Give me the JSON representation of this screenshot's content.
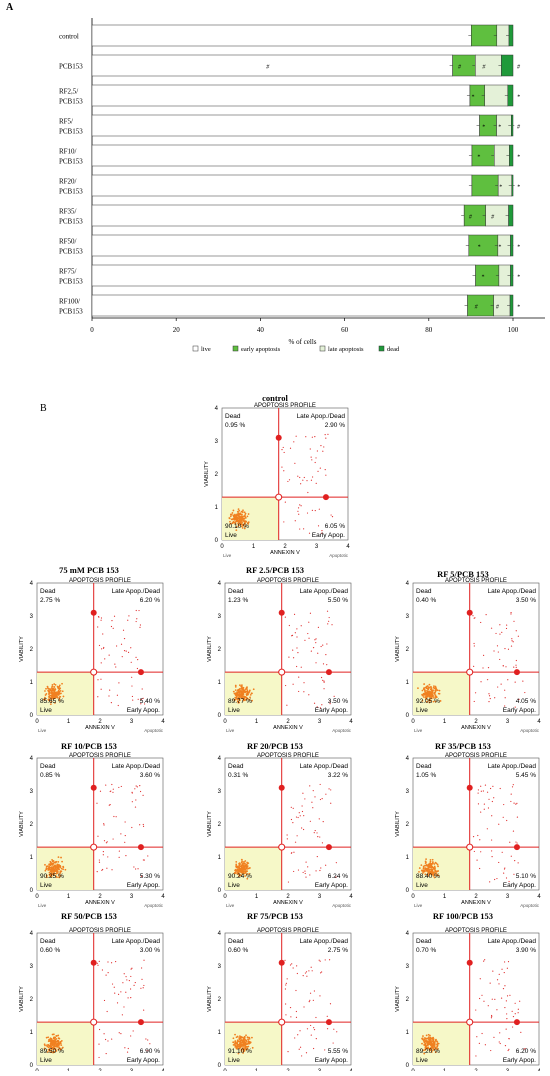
{
  "panel_a": {
    "label": "A",
    "chart_data": {
      "type": "bar",
      "orientation": "horizontal",
      "stacked": true,
      "xlabel": "% of cells",
      "xlim": [
        0,
        100
      ],
      "xticks": [
        0,
        20,
        40,
        60,
        80,
        100
      ],
      "categories": [
        "control",
        "PCB153",
        "RF2,5/\nPCB153",
        "RF5/\nPCB153",
        "RF10/\nPCB153",
        "RF20/\nPCB153",
        "RF35/\nPCB153",
        "RF50/\nPCB153",
        "RF75/\nPCB153",
        "RF100/\nPCB153"
      ],
      "series": [
        {
          "name": "live",
          "color": "#ffffff",
          "values": [
            90.1,
            85.65,
            89.77,
            92.05,
            90.25,
            90.24,
            88.4,
            89.5,
            91.1,
            89.2
          ]
        },
        {
          "name": "early apoptosis",
          "color": "#5fbf3f",
          "values": [
            6.05,
            5.4,
            3.5,
            4.05,
            5.3,
            6.24,
            5.1,
            6.9,
            5.55,
            6.2
          ]
        },
        {
          "name": "late apoptosis",
          "color": "#e4f1d8",
          "values": [
            2.9,
            6.2,
            5.5,
            3.5,
            3.6,
            3.22,
            5.45,
            3.0,
            2.75,
            3.9
          ]
        },
        {
          "name": "dead",
          "color": "#1f9a3a",
          "values": [
            0.95,
            2.75,
            1.23,
            0.4,
            0.85,
            0.31,
            1.05,
            0.6,
            0.6,
            0.7
          ]
        }
      ],
      "annotations": [
        [
          "",
          "",
          "",
          ""
        ],
        [
          "#",
          "#",
          "#",
          "#"
        ],
        [
          "",
          "*",
          "",
          "*"
        ],
        [
          "",
          "*",
          "*",
          "#"
        ],
        [
          "",
          "*",
          "",
          "*"
        ],
        [
          "",
          "",
          "*",
          "*"
        ],
        [
          "",
          "#",
          "#",
          ""
        ],
        [
          "",
          "*",
          "*",
          "*"
        ],
        [
          "",
          "*",
          "",
          "*"
        ],
        [
          "",
          "#",
          "#",
          "*"
        ]
      ],
      "legend": [
        "live",
        "early apoptosis",
        "late apoptosis",
        "dead"
      ],
      "legend_position": "bottom"
    }
  },
  "panel_b": {
    "label": "B",
    "plot_text": {
      "subtitle": "APOPTOSIS PROFILE",
      "ylabel": "VIABILITY",
      "xlabel": "ANNEXIN V",
      "x_left_label": "Live",
      "x_right_label": "Apoptotic",
      "q_dead": "Dead",
      "q_late": "Late Apop./Dead",
      "q_live": "Live",
      "q_early": "Early Apop.",
      "ticks": [
        "0",
        "1",
        "2",
        "3",
        "4"
      ]
    },
    "chart_data": [
      {
        "type": "scatter",
        "title": "control",
        "dead": "0.95 %",
        "late": "2.90 %",
        "live": "90.10 %",
        "early": "6.05 %",
        "xlim": [
          0,
          4
        ],
        "ylim": [
          0,
          4
        ]
      },
      {
        "type": "scatter",
        "title": "75 mM PCB 153",
        "dead": "2.75 %",
        "late": "6.20 %",
        "live": "85.65 %",
        "early": "5.40 %",
        "xlim": [
          0,
          4
        ],
        "ylim": [
          0,
          4
        ]
      },
      {
        "type": "scatter",
        "title": "RF 2.5/PCB 153",
        "dead": "1.23 %",
        "late": "5.50 %",
        "live": "89.77 %",
        "early": "3.50 %",
        "xlim": [
          0,
          4
        ],
        "ylim": [
          0,
          4
        ]
      },
      {
        "type": "scatter",
        "title": "RF 5/PCB 153",
        "dead": "0.40 %",
        "late": "3.50 %",
        "live": "92.05 %",
        "early": "4.05 %",
        "xlim": [
          0,
          4
        ],
        "ylim": [
          0,
          4
        ]
      },
      {
        "type": "scatter",
        "title": "RF 10/PCB 153",
        "dead": "0.85 %",
        "late": "3.60 %",
        "live": "90.25 %",
        "early": "5.30 %",
        "xlim": [
          0,
          4
        ],
        "ylim": [
          0,
          4
        ]
      },
      {
        "type": "scatter",
        "title": "RF 20/PCB 153",
        "dead": "0.31 %",
        "late": "3.22 %",
        "live": "90.24 %",
        "early": "6.24 %",
        "xlim": [
          0,
          4
        ],
        "ylim": [
          0,
          4
        ]
      },
      {
        "type": "scatter",
        "title": "RF 35/PCB 153",
        "dead": "1.05 %",
        "late": "5.45 %",
        "live": "88.40 %",
        "early": "5.10 %",
        "xlim": [
          0,
          4
        ],
        "ylim": [
          0,
          4
        ]
      },
      {
        "type": "scatter",
        "title": "RF 50/PCB 153",
        "dead": "0.60 %",
        "late": "3.00 %",
        "live": "89.50 %",
        "early": "6.90 %",
        "xlim": [
          0,
          4
        ],
        "ylim": [
          0,
          4
        ]
      },
      {
        "type": "scatter",
        "title": "RF 75/PCB 153",
        "dead": "0.60 %",
        "late": "2.75 %",
        "live": "91.10 %",
        "early": "5.55 %",
        "xlim": [
          0,
          4
        ],
        "ylim": [
          0,
          4
        ]
      },
      {
        "type": "scatter",
        "title": "RF 100/PCB 153",
        "dead": "0.70 %",
        "late": "3.90 %",
        "live": "89.20 %",
        "early": "6.20 %",
        "xlim": [
          0,
          4
        ],
        "ylim": [
          0,
          4
        ]
      }
    ],
    "colors": {
      "live_region": "#f6f8c8",
      "gate_line": "#e02020",
      "dots": "#f08020",
      "scatter": "#e03030"
    }
  }
}
